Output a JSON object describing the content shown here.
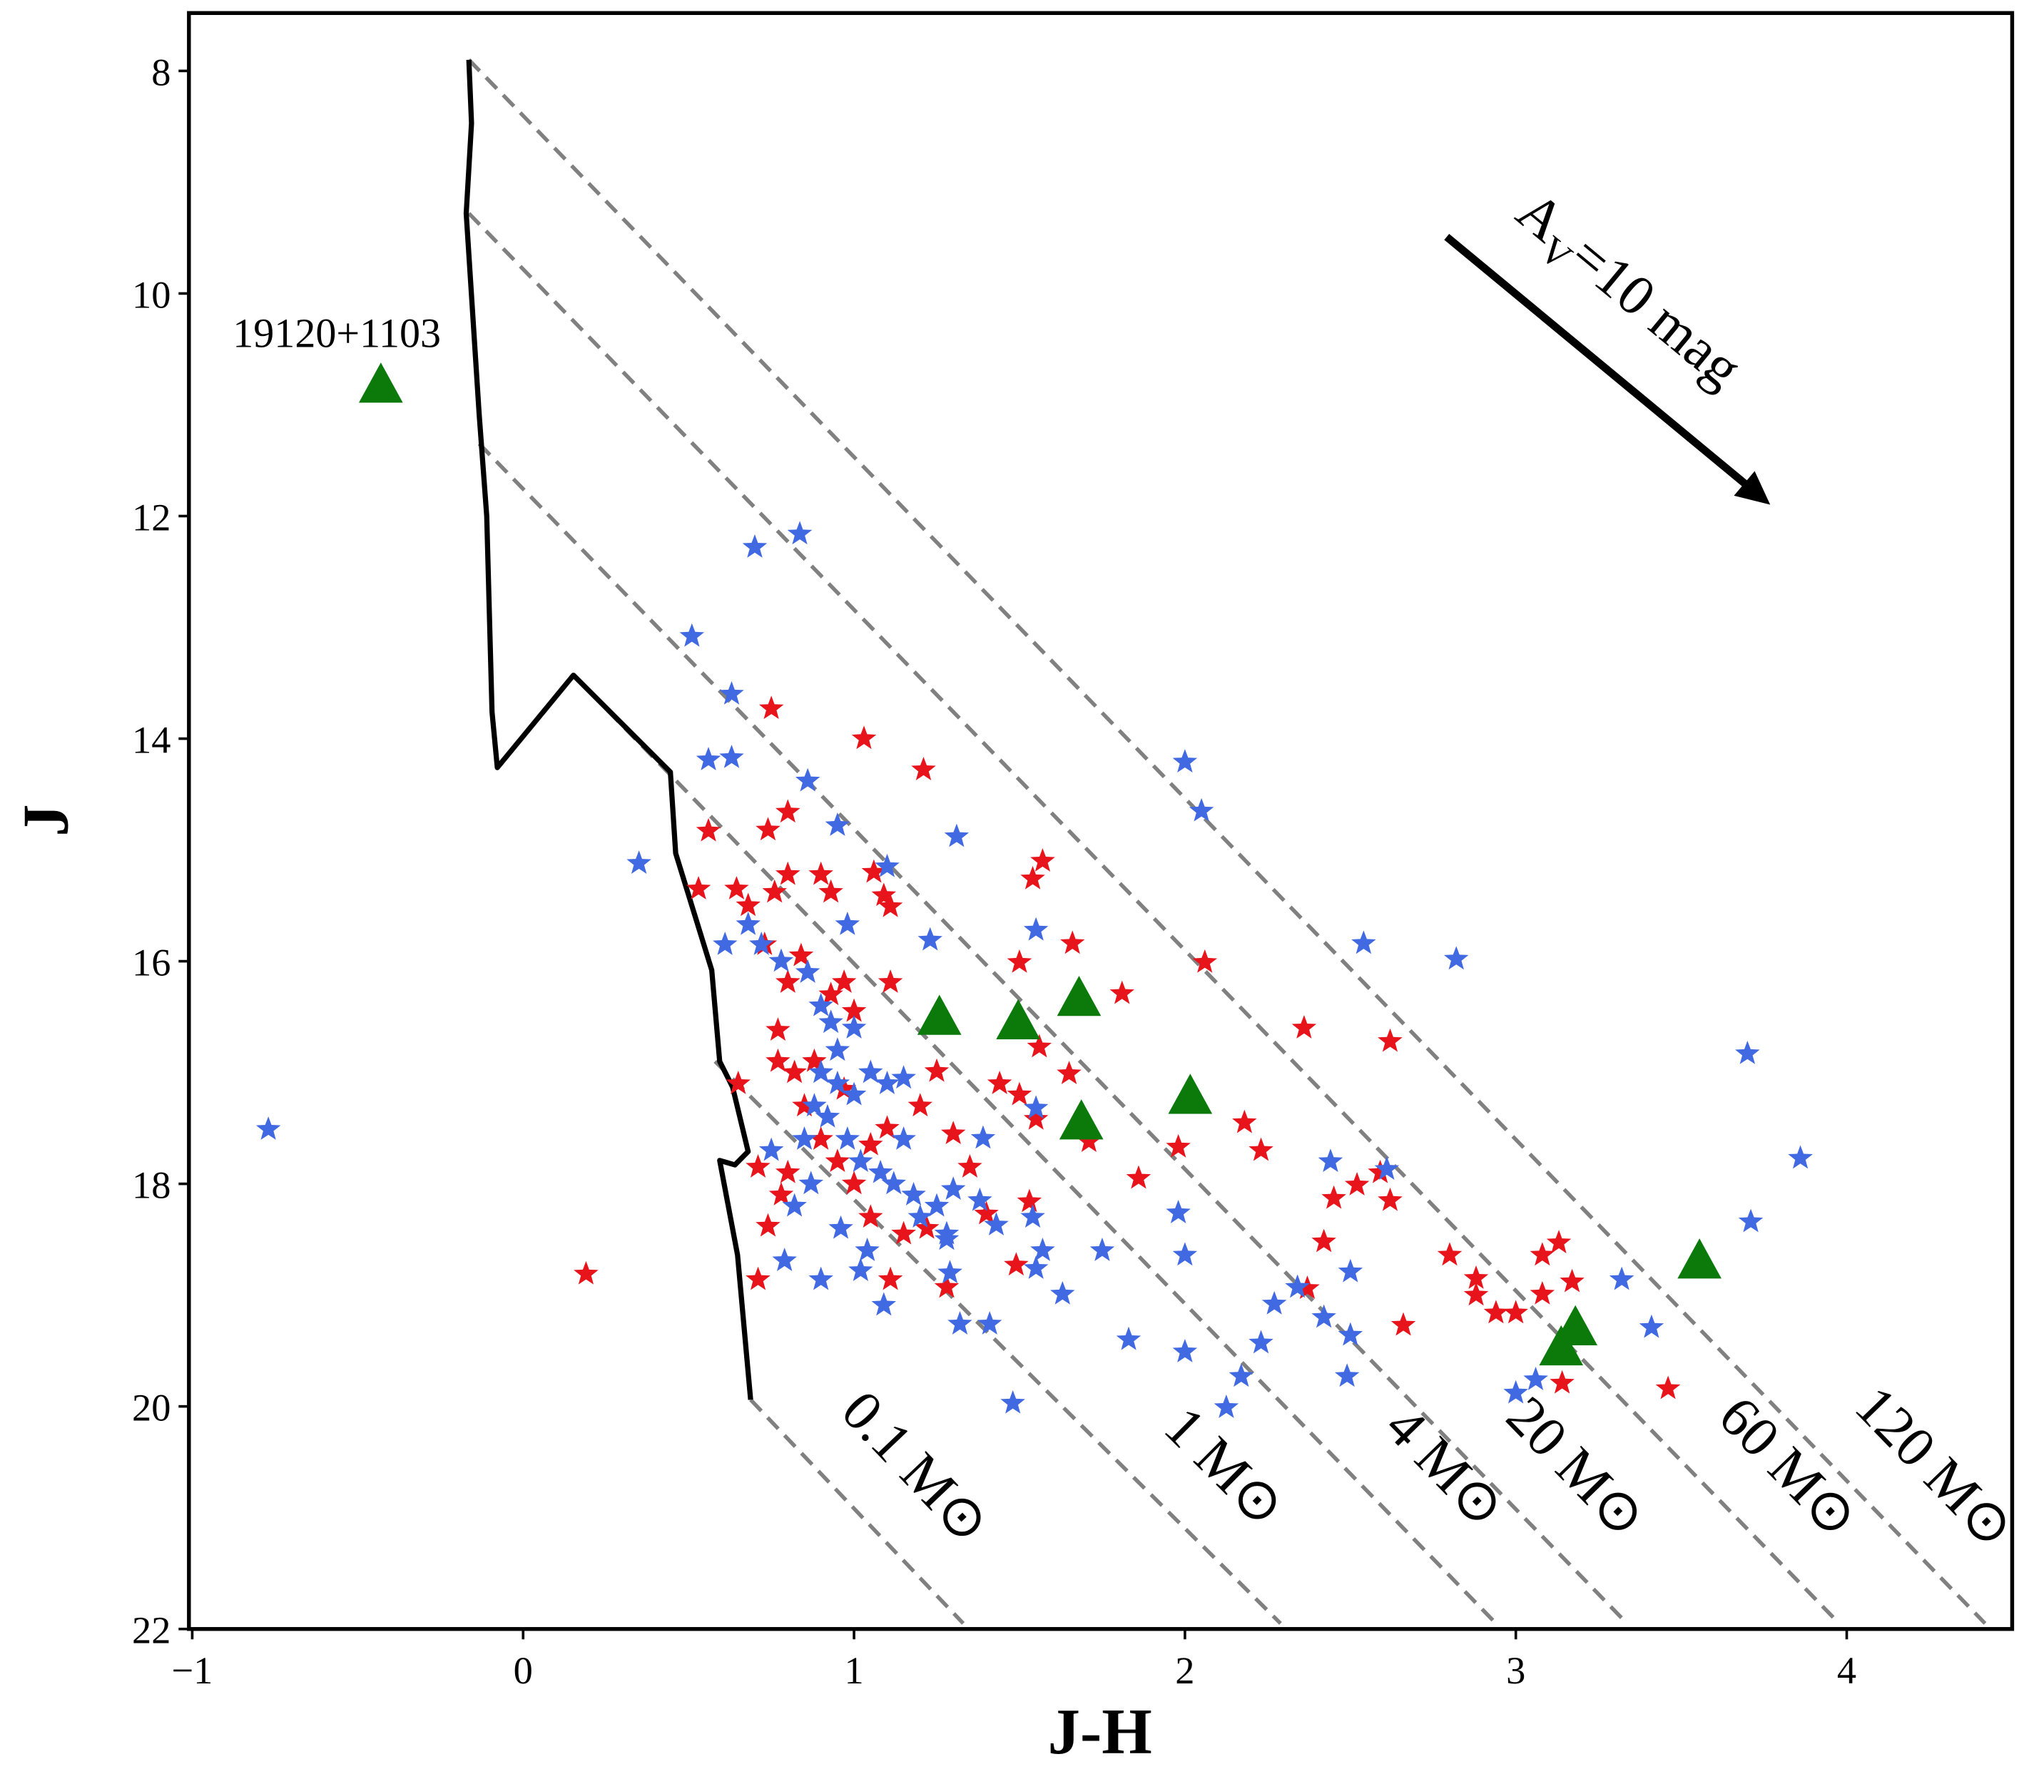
{
  "chart_data": {
    "type": "scatter",
    "x_label": "J-H",
    "y_label": "J",
    "xlim": [
      -1.01,
      4.5
    ],
    "ylim": [
      22,
      7.48
    ],
    "xticks": [
      {
        "value": -1,
        "label": "−1"
      },
      0,
      1,
      2,
      3,
      4
    ],
    "yticks": [
      8,
      10,
      12,
      14,
      16,
      18,
      20,
      22
    ],
    "series": [
      {
        "marker": "star",
        "color": "#e8141c",
        "x": [
          0.19,
          0.53,
          0.56,
          0.75,
          1.03,
          1.21,
          0.8,
          0.74,
          0.645,
          0.68,
          0.76,
          0.8,
          0.9,
          0.93,
          1.06,
          1.09,
          1.11,
          1.57,
          1.54,
          1.66,
          1.5,
          2.06,
          1.81,
          1.11,
          0.97,
          1.56,
          2.36,
          2.62,
          1.65,
          1.25,
          1.44,
          1.5,
          1.55,
          1.71,
          1.3,
          1.35,
          1.4,
          1.53,
          1.49,
          1.86,
          1.98,
          2.18,
          2.23,
          2.45,
          2.52,
          2.59,
          2.62,
          2.42,
          2.37,
          2.66,
          2.8,
          2.88,
          2.88,
          2.94,
          3.0,
          3.08,
          3.08,
          3.13,
          3.17,
          3.14,
          3.46,
          1.28,
          1.11,
          0.71,
          0.71,
          0.74,
          0.65,
          0.77,
          0.77,
          0.8,
          0.84,
          0.73,
          0.85,
          0.9,
          0.95,
          1.0,
          1.05,
          1.1,
          1.2,
          1.22,
          0.82,
          0.88,
          0.93,
          1.0,
          1.05,
          0.8,
          0.78,
          1.15,
          0.97
        ],
        "y": [
          18.81,
          15.35,
          14.83,
          13.73,
          14.0,
          14.28,
          14.66,
          14.82,
          15.35,
          15.5,
          15.38,
          15.22,
          15.22,
          15.38,
          15.2,
          15.41,
          15.51,
          15.1,
          15.26,
          15.84,
          16.01,
          16.01,
          16.29,
          16.19,
          16.19,
          16.77,
          16.6,
          16.72,
          17.01,
          16.99,
          17.1,
          17.2,
          17.42,
          17.62,
          17.55,
          17.85,
          18.27,
          18.16,
          18.73,
          17.95,
          17.67,
          17.45,
          17.7,
          18.13,
          18.01,
          17.9,
          18.15,
          18.52,
          18.94,
          19.27,
          18.64,
          18.85,
          19.0,
          19.16,
          19.16,
          18.99,
          18.64,
          18.53,
          18.88,
          19.79,
          19.84,
          18.93,
          18.86,
          18.86,
          17.85,
          18.38,
          17.1,
          16.9,
          16.62,
          16.19,
          15.95,
          15.85,
          17.3,
          17.6,
          17.8,
          18.0,
          18.3,
          17.5,
          17.3,
          18.4,
          17.0,
          16.9,
          16.3,
          16.45,
          17.65,
          17.9,
          18.1,
          18.45,
          17.15
        ]
      },
      {
        "marker": "star",
        "color": "#4169e1",
        "x": [
          -0.77,
          0.35,
          0.7,
          0.836,
          0.51,
          0.63,
          0.56,
          0.63,
          0.86,
          0.95,
          1.31,
          1.1,
          0.98,
          0.68,
          0.61,
          1.23,
          1.55,
          1.55,
          1.39,
          2.0,
          2.05,
          2.54,
          2.82,
          3.7,
          3.86,
          3.71,
          2.44,
          2.61,
          1.98,
          2.0,
          1.75,
          1.57,
          1.63,
          1.83,
          2.0,
          2.125,
          2.17,
          2.23,
          2.27,
          2.34,
          2.42,
          2.49,
          2.5,
          2.5,
          3.0,
          3.06,
          3.32,
          3.41,
          1.48,
          1.32,
          1.41,
          1.55,
          1.29,
          1.02,
          0.9,
          0.79,
          1.09,
          1.43,
          1.54,
          1.28,
          0.9,
          0.95,
          1.0,
          1.05,
          1.1,
          1.15,
          0.92,
          0.98,
          1.02,
          1.08,
          1.12,
          1.18,
          1.2,
          1.25,
          1.28,
          0.88,
          0.85,
          0.87,
          0.82,
          0.95,
          1.0,
          0.9,
          0.86,
          0.78,
          0.72,
          0.75,
          0.96,
          1.04,
          1.15,
          1.3,
          1.38,
          0.93
        ],
        "y": [
          17.51,
          15.12,
          12.28,
          12.16,
          13.08,
          13.6,
          14.19,
          14.17,
          14.38,
          14.78,
          14.88,
          15.15,
          15.67,
          15.67,
          15.85,
          15.81,
          15.72,
          17.32,
          17.59,
          14.21,
          14.65,
          15.84,
          15.98,
          16.83,
          17.77,
          18.34,
          17.8,
          17.87,
          18.26,
          18.64,
          18.6,
          18.6,
          18.99,
          19.4,
          19.51,
          20.01,
          19.73,
          19.43,
          19.08,
          18.93,
          19.2,
          19.73,
          18.79,
          19.36,
          19.88,
          19.76,
          18.86,
          19.29,
          19.97,
          19.26,
          19.26,
          18.76,
          18.8,
          18.78,
          18.86,
          18.69,
          19.09,
          18.37,
          18.3,
          18.45,
          17.0,
          17.1,
          17.2,
          17.0,
          17.1,
          17.05,
          17.4,
          17.6,
          17.8,
          17.9,
          18.0,
          18.1,
          18.3,
          18.2,
          18.5,
          17.3,
          17.6,
          18.0,
          18.2,
          16.8,
          16.6,
          16.4,
          16.1,
          16.0,
          15.85,
          17.7,
          18.4,
          18.6,
          17.6,
          18.05,
          18.15,
          16.55
        ]
      },
      {
        "marker": "triangle",
        "color": "#0b7a0b",
        "x": [
          -0.43,
          1.258,
          1.496,
          1.68,
          1.687,
          2.016,
          3.555,
          3.18,
          3.137
        ],
        "y": [
          10.83,
          16.51,
          16.55,
          16.34,
          17.45,
          17.22,
          18.7,
          19.3,
          19.48
        ]
      }
    ],
    "isochrone": {
      "color": "#000000",
      "x": [
        -0.164,
        -0.156,
        -0.172,
        -0.133,
        -0.11,
        -0.094,
        -0.078,
        0.152,
        0.445,
        0.461,
        0.57,
        0.594,
        0.633,
        0.68,
        0.64,
        0.594,
        0.648,
        0.6875
      ],
      "y": [
        7.9,
        8.47,
        9.28,
        11.08,
        12.0,
        13.76,
        14.26,
        13.43,
        14.3,
        15.03,
        16.08,
        16.9,
        17.13,
        17.71,
        17.83,
        17.79,
        18.64,
        19.94
      ]
    },
    "tracks": [
      {
        "label": "0.1 M⊙",
        "x": [
          0.6875,
          1.33
        ],
        "y": [
          19.94,
          21.95
        ]
      },
      {
        "label": "1 M⊙",
        "x": [
          0.58,
          2.289
        ],
        "y": [
          16.9,
          21.95
        ]
      },
      {
        "label": "4 M⊙",
        "x": [
          0.152,
          2.94
        ],
        "y": [
          13.43,
          21.95
        ]
      },
      {
        "label": "20 M⊙",
        "x": [
          -0.133,
          3.336
        ],
        "y": [
          11.35,
          21.95
        ]
      },
      {
        "label": "60 M⊙",
        "x": [
          -0.164,
          3.977
        ],
        "y": [
          9.28,
          21.95
        ]
      },
      {
        "label": "120 M⊙",
        "x": [
          -0.164,
          4.418
        ],
        "y": [
          7.9,
          21.95
        ]
      }
    ],
    "track_color": "#808080",
    "source_label": "19120+1103",
    "extinction_label": {
      "main": "A",
      "sub": "V",
      "rest": "=10 mag"
    }
  }
}
